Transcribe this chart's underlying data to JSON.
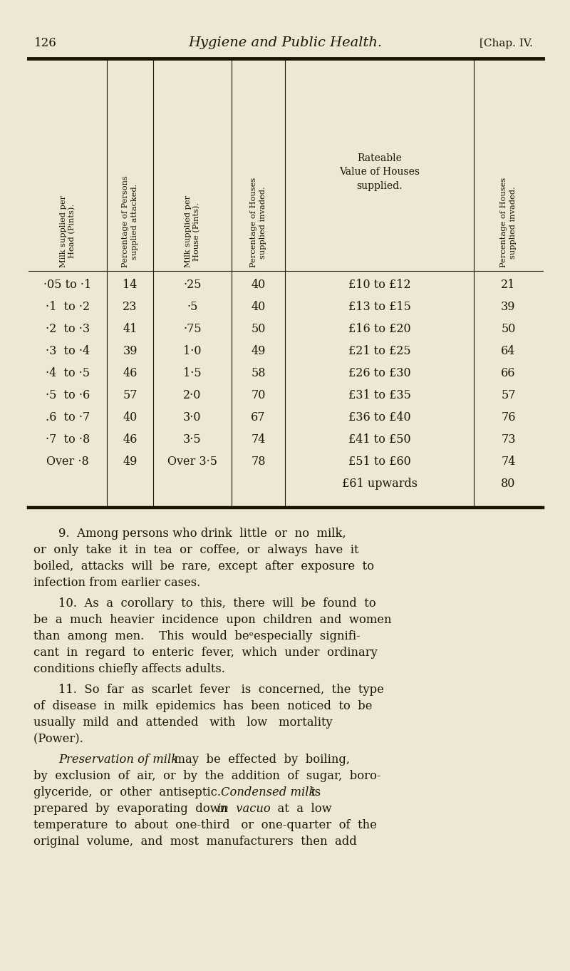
{
  "page_number": "126",
  "page_title": "Hygiene and Public Health.",
  "page_subtitle": "[Chap. IV.",
  "bg_color": "#ede8d5",
  "text_color": "#1a1505",
  "col_headers_rotated": [
    "Milk supplied per\nHead (Pints).",
    "Percentage of Persons\nsupplied attacked.",
    "Milk supplied per\nHouse (Pints).",
    "Percentage of Houses\nsupplied invaded.",
    "Percentage of Houses\nsupplied invaded."
  ],
  "col_header_center": "Rateable\nValue of Houses\nsupplied.",
  "table_rows_col12": [
    [
      "·05 to ·1",
      "14"
    ],
    [
      "·1  to ·2",
      "23"
    ],
    [
      "·2  to ·3",
      "41"
    ],
    [
      "·3  to ·4",
      "39"
    ],
    [
      "·4  to ·5",
      "46"
    ],
    [
      "·5  to ·6",
      "57"
    ],
    [
      ".6  to ·7",
      "40"
    ],
    [
      "·7  to ·8",
      "46"
    ],
    [
      "Over ·8",
      "49"
    ]
  ],
  "table_rows_col34": [
    [
      "·25",
      "40"
    ],
    [
      "·5",
      "40"
    ],
    [
      "·75",
      "50"
    ],
    [
      "1·0",
      "49"
    ],
    [
      "1·5",
      "58"
    ],
    [
      "2·0",
      "70"
    ],
    [
      "3·0",
      "67"
    ],
    [
      "3·5",
      "74"
    ],
    [
      "Over 3·5",
      "78"
    ]
  ],
  "table_rows_col56": [
    [
      "£10 to £12",
      "21"
    ],
    [
      "£13 to £15",
      "39"
    ],
    [
      "£16 to £20",
      "50"
    ],
    [
      "£21 to £25",
      "64"
    ],
    [
      "£26 to £30",
      "66"
    ],
    [
      "£31 to £35",
      "57"
    ],
    [
      "£36 to £40",
      "76"
    ],
    [
      "£41 to £50",
      "73"
    ],
    [
      "£51 to £60",
      "74"
    ],
    [
      "£61 upwards",
      "80"
    ]
  ],
  "para9_lines": [
    "    9.  Among persons who drink  little  or  no  milk,",
    "or  only  take  it  in  tea  or  coffee,  or  always  have  it",
    "boiled,  attacks  will  be  rare,  except  after  exposure  to",
    "infection from earlier cases."
  ],
  "para10_lines": [
    "    10.  As  a  corollary  to  this,  there  will  be  found  to",
    "be  a  much  heavier  incidence  upon  children  and  women",
    "than  among  men.    This  would  beᵉespecially  signifi-",
    "cant  in  regard  to  enteric  fever,  which  under  ordinary",
    "conditions chiefly affects adults."
  ],
  "para11_lines": [
    "    11.  So  far  as  scarlet  fever   is  concerned,  the  type",
    "of  disease  in  milk  epidemics  has  been  noticed  to  be",
    "usually  mild  and  attended   with   low   mortality",
    "(Power)."
  ],
  "pres_line1_a": "    Preservation of milk",
  "pres_line1_b": "  may  be  effected  by  boiling,",
  "pres_line2": "by  exclusion  of  air,  or  by  the  addition  of  sugar,  boro-",
  "pres_line3_a": "glyceride,  or  other  antiseptic.    ",
  "pres_line3_b": "Condensed milk",
  "pres_line3_c": "  is",
  "pres_line4_a": "prepared  by  evaporating  down  ",
  "pres_line4_b": "in  vacuo",
  "pres_line4_c": "  at  a  low",
  "pres_line5": "temperature  to  about  one-third   or  one-quarter  of  the",
  "pres_line6": "original  volume,  and  most  manufacturers  then  add"
}
